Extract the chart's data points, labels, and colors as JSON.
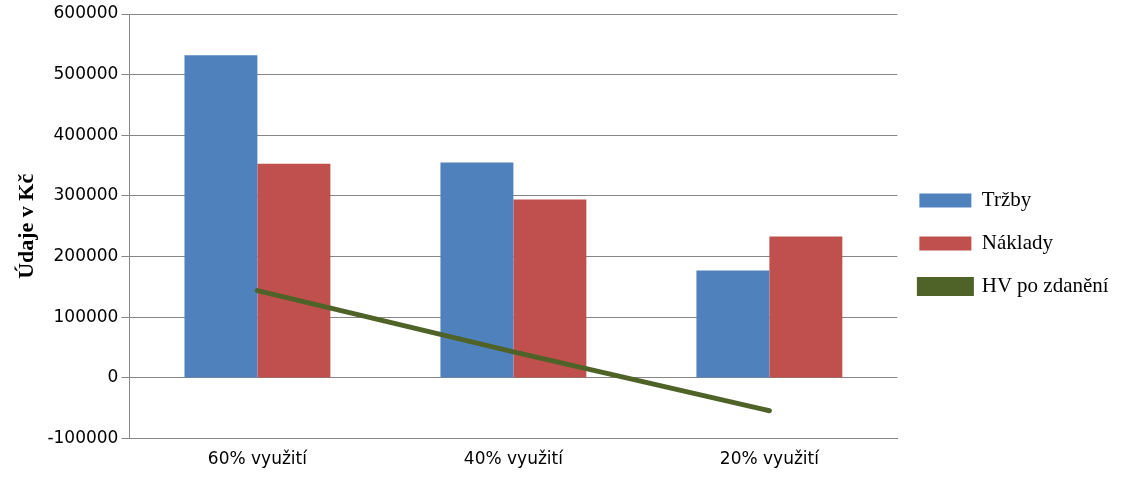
{
  "chart_data": {
    "type": "bar",
    "ylabel": "Údaje v Kč",
    "categories": [
      "60% využití",
      "40% využití",
      "20% využití"
    ],
    "series": [
      {
        "name": "Tržby",
        "color": "#4f81bd",
        "values": [
          532000,
          355000,
          177000
        ]
      },
      {
        "name": "Náklady",
        "color": "#c0504d",
        "values": [
          353000,
          294000,
          233000
        ]
      },
      {
        "name": "HV po zdanění",
        "type": "line",
        "color": "#4f6228",
        "values": [
          144000,
          43000,
          -54000
        ]
      }
    ],
    "ylim": [
      -100000,
      600000
    ],
    "yticks": [
      -100000,
      0,
      100000,
      200000,
      300000,
      400000,
      500000,
      600000
    ],
    "grid": "y",
    "legend": "right",
    "marker": "none"
  }
}
